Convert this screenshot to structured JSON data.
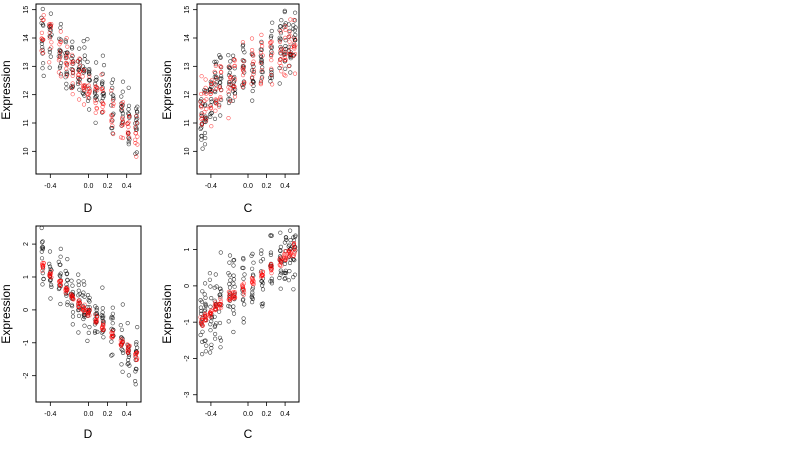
{
  "chart_data": [
    {
      "type": "scatter",
      "xlabel": "D",
      "ylabel": "Expression",
      "xlim": [
        -0.55,
        0.55
      ],
      "ylim": [
        9.2,
        15.2
      ],
      "xticks": [
        "-0.4",
        "0.0",
        "0.2",
        "0.4"
      ],
      "xtick_values": [
        -0.4,
        0.0,
        0.2,
        0.4
      ],
      "yticks": [
        "10",
        "11",
        "12",
        "13",
        "14",
        "15"
      ],
      "ytick_values": [
        10,
        11,
        12,
        13,
        14,
        15
      ],
      "grid": false,
      "series": [
        {
          "color": "#000000",
          "x": [
            -0.48,
            -0.4,
            -0.3,
            -0.23,
            -0.17,
            -0.1,
            -0.05,
            0.0,
            0.08,
            0.15,
            0.25,
            0.35,
            0.42,
            0.5
          ],
          "y": [
            14.0,
            13.8,
            13.5,
            13.3,
            13.0,
            12.8,
            12.6,
            12.5,
            12.3,
            12.1,
            11.8,
            11.5,
            11.2,
            11.0
          ],
          "spread": 1.1
        },
        {
          "color": "#ff0000",
          "x": [
            -0.48,
            -0.4,
            -0.3,
            -0.23,
            -0.17,
            -0.1,
            -0.05,
            0.0,
            0.08,
            0.15,
            0.25,
            0.35,
            0.42,
            0.5
          ],
          "y": [
            14.3,
            13.9,
            13.5,
            13.2,
            12.9,
            12.6,
            12.4,
            12.2,
            12.0,
            11.8,
            11.5,
            11.2,
            10.9,
            10.6
          ],
          "spread": 0.8
        }
      ]
    },
    {
      "type": "scatter",
      "xlabel": "C",
      "ylabel": "Expression",
      "xlim": [
        -0.55,
        0.55
      ],
      "ylim": [
        9.2,
        15.2
      ],
      "xticks": [
        "-0.4",
        "0.0",
        "0.2",
        "0.4"
      ],
      "xtick_values": [
        -0.4,
        0.0,
        0.2,
        0.4
      ],
      "yticks": [
        "10",
        "11",
        "12",
        "13",
        "14",
        "15"
      ],
      "ytick_values": [
        10,
        11,
        12,
        13,
        14,
        15
      ],
      "grid": false,
      "series": [
        {
          "color": "#000000",
          "x": [
            -0.5,
            -0.46,
            -0.4,
            -0.35,
            -0.3,
            -0.2,
            -0.15,
            -0.05,
            0.05,
            0.15,
            0.25,
            0.35,
            0.4,
            0.45,
            0.5
          ],
          "y": [
            11.0,
            11.5,
            11.8,
            12.0,
            12.2,
            12.4,
            12.6,
            12.8,
            13.0,
            13.2,
            13.4,
            13.6,
            13.7,
            13.8,
            13.9
          ],
          "spread": 1.2
        },
        {
          "color": "#ff0000",
          "x": [
            -0.5,
            -0.46,
            -0.4,
            -0.35,
            -0.3,
            -0.2,
            -0.15,
            -0.05,
            0.05,
            0.15,
            0.25,
            0.35,
            0.4,
            0.45,
            0.5
          ],
          "y": [
            11.6,
            11.8,
            12.0,
            12.1,
            12.2,
            12.4,
            12.6,
            12.8,
            13.0,
            13.1,
            13.3,
            13.5,
            13.6,
            13.8,
            14.0
          ],
          "spread": 1.0
        }
      ]
    },
    {
      "type": "scatter",
      "xlabel": "D",
      "ylabel": "Expression",
      "xlim": [
        -0.55,
        0.55
      ],
      "ylim": [
        -2.8,
        2.55
      ],
      "xticks": [
        "-0.4",
        "0.0",
        "0.2",
        "0.4"
      ],
      "xtick_values": [
        -0.4,
        0.0,
        0.2,
        0.4
      ],
      "yticks": [
        "-2",
        "-1",
        "0",
        "1",
        "2"
      ],
      "ytick_values": [
        -2,
        -1,
        0,
        1,
        2
      ],
      "grid": false,
      "series": [
        {
          "color": "#000000",
          "x": [
            -0.48,
            -0.4,
            -0.3,
            -0.23,
            -0.17,
            -0.1,
            -0.05,
            0.0,
            0.08,
            0.15,
            0.25,
            0.35,
            0.42,
            0.5
          ],
          "y": [
            1.5,
            1.2,
            0.9,
            0.7,
            0.5,
            0.3,
            0.1,
            0.0,
            -0.2,
            -0.4,
            -0.7,
            -1.0,
            -1.3,
            -1.6
          ],
          "spread": 0.9
        },
        {
          "color": "#ff0000",
          "x": [
            -0.48,
            -0.4,
            -0.3,
            -0.23,
            -0.17,
            -0.1,
            -0.05,
            0.0,
            0.08,
            0.15,
            0.25,
            0.35,
            0.42,
            0.5
          ],
          "y": [
            1.4,
            1.1,
            0.8,
            0.6,
            0.4,
            0.2,
            0.0,
            -0.1,
            -0.3,
            -0.5,
            -0.8,
            -1.0,
            -1.2,
            -1.4
          ],
          "spread": 0.15
        }
      ]
    },
    {
      "type": "scatter",
      "xlabel": "C",
      "ylabel": "Expression",
      "xlim": [
        -0.55,
        0.55
      ],
      "ylim": [
        -3.2,
        1.65
      ],
      "xticks": [
        "-0.4",
        "0.0",
        "0.2",
        "0.4"
      ],
      "xtick_values": [
        -0.4,
        0.0,
        0.2,
        0.4
      ],
      "yticks": [
        "-3",
        "-2",
        "-1",
        "0",
        "1"
      ],
      "ytick_values": [
        -3,
        -2,
        -1,
        0,
        1
      ],
      "grid": false,
      "series": [
        {
          "color": "#000000",
          "x": [
            -0.5,
            -0.46,
            -0.4,
            -0.35,
            -0.3,
            -0.2,
            -0.15,
            -0.05,
            0.05,
            0.15,
            0.25,
            0.35,
            0.4,
            0.45,
            0.5
          ],
          "y": [
            -1.0,
            -0.9,
            -0.8,
            -0.6,
            -0.5,
            -0.3,
            -0.2,
            0.0,
            0.2,
            0.4,
            0.6,
            0.8,
            0.9,
            1.0,
            1.1
          ],
          "spread": 1.0
        },
        {
          "color": "#ff0000",
          "x": [
            -0.5,
            -0.46,
            -0.4,
            -0.35,
            -0.3,
            -0.2,
            -0.15,
            -0.05,
            0.05,
            0.15,
            0.25,
            0.35,
            0.4,
            0.45,
            0.5
          ],
          "y": [
            -0.95,
            -0.85,
            -0.75,
            -0.6,
            -0.5,
            -0.35,
            -0.25,
            -0.05,
            0.1,
            0.3,
            0.5,
            0.7,
            0.8,
            0.9,
            1.0
          ],
          "spread": 0.15
        }
      ]
    }
  ]
}
